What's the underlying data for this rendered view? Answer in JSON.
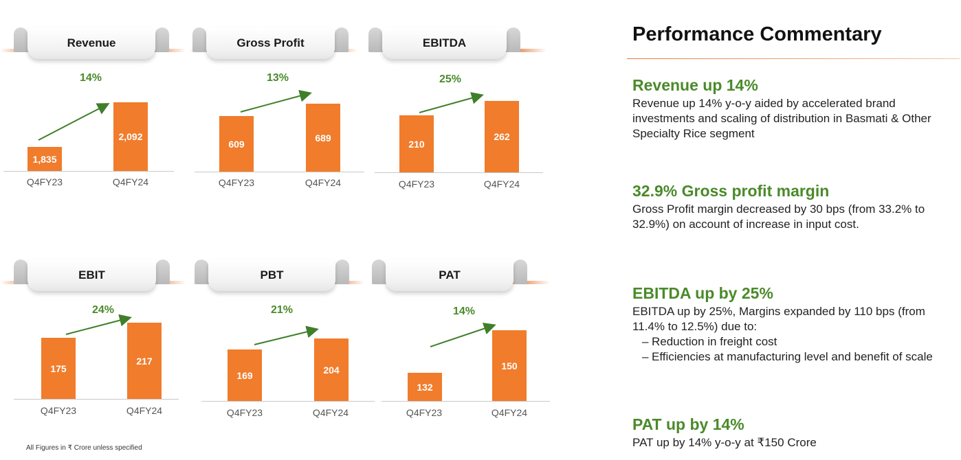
{
  "chart_data": [
    {
      "type": "bar",
      "title": "Revenue",
      "categories": [
        "Q4FY23",
        "Q4FY24"
      ],
      "values": [
        1835,
        2092
      ],
      "value_labels": [
        "1,835",
        "2,092"
      ],
      "growth": "14%",
      "ylim": [
        0,
        2300
      ],
      "grid": false
    },
    {
      "type": "bar",
      "title": "Gross Profit",
      "categories": [
        "Q4FY23",
        "Q4FY24"
      ],
      "values": [
        609,
        689
      ],
      "value_labels": [
        "609",
        "689"
      ],
      "growth": "13%",
      "ylim": [
        0,
        700
      ],
      "grid": false
    },
    {
      "type": "bar",
      "title": "EBITDA",
      "categories": [
        "Q4FY23",
        "Q4FY24"
      ],
      "values": [
        210,
        262
      ],
      "value_labels": [
        "210",
        "262"
      ],
      "growth": "25%",
      "ylim": [
        0,
        262
      ],
      "grid": false
    },
    {
      "type": "bar",
      "title": "EBIT",
      "categories": [
        "Q4FY23",
        "Q4FY24"
      ],
      "values": [
        175,
        217
      ],
      "value_labels": [
        "175",
        "217"
      ],
      "growth": "24%",
      "ylim": [
        0,
        217
      ],
      "grid": false
    },
    {
      "type": "bar",
      "title": "PBT",
      "categories": [
        "Q4FY23",
        "Q4FY24"
      ],
      "values": [
        169,
        204
      ],
      "value_labels": [
        "169",
        "204"
      ],
      "growth": "21%",
      "ylim": [
        0,
        204
      ],
      "grid": false
    },
    {
      "type": "bar",
      "title": "PAT",
      "categories": [
        "Q4FY23",
        "Q4FY24"
      ],
      "values": [
        132,
        150
      ],
      "value_labels": [
        "132",
        "150"
      ],
      "growth": "14%",
      "ylim": [
        0,
        180
      ],
      "grid": false
    }
  ],
  "colors": {
    "bar": "#f07c2c",
    "growth_label": "#4a8a2a",
    "arrow": "#3f7f2a"
  },
  "footnote": "All Figures in ₹ Crore unless specified",
  "commentary": {
    "title": "Performance Commentary",
    "sections": [
      {
        "heading": "Revenue up 14%",
        "text": "Revenue up 14% y-o-y aided by accelerated brand investments and scaling of distribution in Basmati & Other Specialty Rice segment"
      },
      {
        "heading": "32.9% Gross profit margin",
        "text": "Gross Profit margin decreased by 30 bps (from 33.2% to 32.9%) on account of increase in input cost."
      },
      {
        "heading": "EBITDA up by 25%",
        "text": "EBITDA up by 25%, Margins expanded by 110 bps (from 11.4% to 12.5%) due to:",
        "bullets": [
          "Reduction in freight cost",
          "Efficiencies at manufacturing level and benefit of scale"
        ]
      },
      {
        "heading": "PAT up by 14%",
        "text": "PAT up by 14% y-o-y at ₹150 Crore"
      }
    ]
  }
}
